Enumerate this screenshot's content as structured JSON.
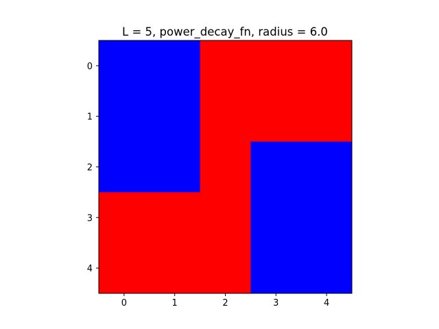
{
  "chart_data": {
    "type": "heatmap",
    "title": "L = 5, power_decay_fn, radius = 6.0",
    "xlabel": "",
    "ylabel": "",
    "x_ticks": [
      "0",
      "1",
      "2",
      "3",
      "4"
    ],
    "y_ticks": [
      "0",
      "1",
      "2",
      "3",
      "4"
    ],
    "xlim": [
      -0.5,
      4.5
    ],
    "ylim": [
      4.5,
      -0.5
    ],
    "grid": false,
    "colors": {
      "0": "#0000ff",
      "1": "#ff0000"
    },
    "matrix": [
      [
        0,
        0,
        1,
        1,
        1
      ],
      [
        0,
        0,
        1,
        1,
        1
      ],
      [
        0,
        0,
        1,
        0,
        0
      ],
      [
        1,
        1,
        1,
        0,
        0
      ],
      [
        1,
        1,
        1,
        0,
        0
      ]
    ]
  }
}
